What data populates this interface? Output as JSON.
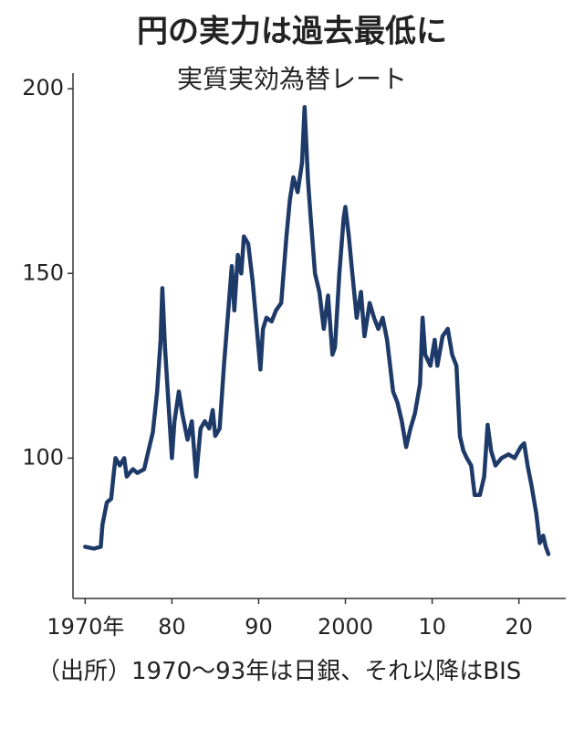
{
  "chart_data": {
    "type": "line",
    "title": "円の実力は過去最低に",
    "subtitle": "実質実効為替レート",
    "note": "（出所）1970～93年は日銀、それ以降はBIS",
    "x": [
      1970.0,
      1971.0,
      1971.8,
      1972.0,
      1972.5,
      1973.0,
      1973.3,
      1973.5,
      1974.0,
      1974.5,
      1974.8,
      1975.5,
      1976.0,
      1976.8,
      1977.3,
      1977.8,
      1978.3,
      1978.7,
      1978.9,
      1979.2,
      1979.6,
      1980.0,
      1980.3,
      1980.8,
      1981.2,
      1981.8,
      1982.3,
      1982.8,
      1983.3,
      1983.8,
      1984.3,
      1984.7,
      1985.0,
      1985.5,
      1986.0,
      1986.5,
      1986.9,
      1987.2,
      1987.6,
      1988.0,
      1988.3,
      1988.8,
      1989.3,
      1989.8,
      1990.2,
      1990.5,
      1990.9,
      1991.5,
      1992.0,
      1992.6,
      1993.2,
      1993.6,
      1994.0,
      1994.5,
      1995.0,
      1995.3,
      1995.7,
      1996.0,
      1996.5,
      1997.0,
      1997.5,
      1998.0,
      1998.5,
      1998.8,
      1999.3,
      1999.8,
      2000.0,
      2000.4,
      2000.8,
      2001.3,
      2001.8,
      2002.2,
      2002.8,
      2003.3,
      2003.8,
      2004.3,
      2004.8,
      2005.5,
      2006.0,
      2006.5,
      2007.0,
      2007.5,
      2008.0,
      2008.6,
      2008.9,
      2009.2,
      2009.8,
      2010.3,
      2010.6,
      2011.2,
      2011.8,
      2012.3,
      2012.8,
      2013.2,
      2013.6,
      2014.0,
      2014.5,
      2014.9,
      2015.5,
      2016.0,
      2016.4,
      2016.8,
      2017.3,
      2018.0,
      2018.8,
      2019.5,
      2020.2,
      2020.6,
      2021.0,
      2021.5,
      2022.0,
      2022.4,
      2022.8,
      2023.1,
      2023.4
    ],
    "series": [
      {
        "color": "#1e3a68",
        "values": [
          76,
          75.5,
          76,
          82,
          88,
          89,
          96,
          100,
          98,
          100,
          95,
          97,
          96,
          97,
          102,
          107,
          118,
          132,
          146,
          130,
          115,
          100,
          110,
          118,
          112,
          105,
          110,
          95,
          108,
          110,
          108,
          113,
          106,
          108,
          125,
          140,
          152,
          140,
          155,
          150,
          160,
          158,
          148,
          135,
          124,
          135,
          138,
          137,
          140,
          142,
          160,
          170,
          176,
          172,
          180,
          195,
          175,
          165,
          150,
          145,
          135,
          144,
          128,
          130,
          150,
          165,
          168,
          160,
          150,
          138,
          145,
          133,
          142,
          138,
          135,
          138,
          132,
          118,
          115,
          110,
          103,
          108,
          112,
          120,
          138,
          128,
          125,
          132,
          125,
          133,
          135,
          128,
          125,
          106,
          102,
          100,
          98,
          90,
          90,
          95,
          109,
          102,
          98,
          100,
          101,
          100,
          103,
          104,
          98,
          92,
          85,
          77,
          79,
          76,
          74
        ]
      }
    ],
    "xlim": [
      1968.6,
      2025.4
    ],
    "ylim": [
      62,
      203
    ],
    "xticks": [
      {
        "value": 1970,
        "label": "1970年"
      },
      {
        "value": 1980,
        "label": "80"
      },
      {
        "value": 1990,
        "label": "90"
      },
      {
        "value": 2000,
        "label": "2000"
      },
      {
        "value": 2010,
        "label": "10"
      },
      {
        "value": 2020,
        "label": "20"
      }
    ],
    "yticks": [
      100,
      150,
      200
    ],
    "grid": false
  }
}
